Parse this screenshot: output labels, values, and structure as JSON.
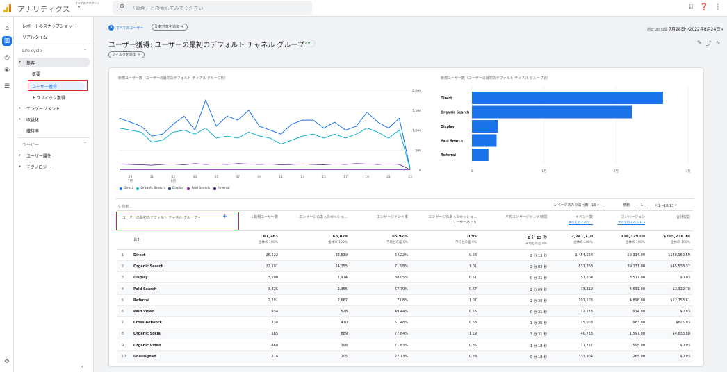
{
  "topbar": {
    "app_title": "アナリティクス",
    "account_label": "すべてのアカウント",
    "search_placeholder": "「管理」と検索してみてください"
  },
  "nav": {
    "snapshot": "レポートのスナップショット",
    "realtime": "リアルタイム",
    "lifecycle": "Life cycle",
    "acquisition": "集客",
    "overview": "概要",
    "user_acquisition": "ユーザー獲得",
    "traffic_acquisition": "トラフィック獲得",
    "engagement": "エンゲージメント",
    "monetization": "収益化",
    "retention": "維持率",
    "user_section": "ユーザー",
    "user_attributes": "ユーザー属性",
    "technology": "テクノロジー"
  },
  "header": {
    "all_users_chip": "すべてのユーザー",
    "compare_chip": "比較対象を追加 ＋",
    "date_prefix": "過去 28 日間",
    "date_range": "7月28日～2022年8月24日",
    "page_title": "ユーザー獲得: ユーザーの最初のデフォルト チャネル グループ",
    "filter_chip": "フィルタを追加 ＋"
  },
  "line_chart": {
    "title": "新規ユーザー数（ユーザーの最初のデフォルト チャネル グループ別）",
    "y_ticks": [
      "2,000",
      "1,500",
      "1,000",
      "500",
      "0"
    ],
    "x_ticks": [
      "29",
      "31",
      "02",
      "03",
      "05",
      "07",
      "09",
      "11",
      "13",
      "15",
      "17",
      "19",
      "21",
      "23"
    ],
    "x_month_labels": [
      "7月",
      "8月"
    ],
    "legend": [
      {
        "name": "Direct",
        "color": "#1a73e8"
      },
      {
        "name": "Organic Search",
        "color": "#12b5cb"
      },
      {
        "name": "Display",
        "color": "#1e3a8a"
      },
      {
        "name": "Paid Search",
        "color": "#7b1fa2"
      },
      {
        "name": "Referral",
        "color": "#4a148c"
      }
    ]
  },
  "bar_chart": {
    "title": "新規ユーザー数（ユーザーの最初のデフォルト チャネル グループ別）",
    "x_ticks": [
      "0",
      "1万",
      "2万",
      "3万"
    ]
  },
  "chart_data": [
    {
      "type": "line",
      "x": [
        "07-28",
        "07-29",
        "07-30",
        "07-31",
        "08-01",
        "08-02",
        "08-03",
        "08-04",
        "08-05",
        "08-06",
        "08-07",
        "08-08",
        "08-09",
        "08-10",
        "08-11",
        "08-12",
        "08-13",
        "08-14",
        "08-15",
        "08-16",
        "08-17",
        "08-18",
        "08-19",
        "08-20",
        "08-21",
        "08-22",
        "08-23",
        "08-24"
      ],
      "ylim": [
        0,
        2000
      ],
      "series": [
        {
          "name": "Direct",
          "values": [
            1300,
            1200,
            1100,
            850,
            900,
            1150,
            1350,
            1000,
            1750,
            1100,
            1350,
            1250,
            1500,
            1100,
            1000,
            900,
            1150,
            1250,
            1250,
            1050,
            1200,
            1000,
            1100,
            1450,
            1200,
            1050,
            1300,
            50
          ]
        },
        {
          "name": "Organic Search",
          "values": [
            1050,
            1000,
            950,
            700,
            750,
            950,
            1000,
            900,
            1050,
            800,
            850,
            800,
            950,
            850,
            800,
            650,
            750,
            850,
            900,
            800,
            900,
            800,
            900,
            1050,
            950,
            800,
            1000,
            30
          ]
        },
        {
          "name": "Display",
          "values": [
            20,
            20,
            20,
            20,
            20,
            20,
            20,
            20,
            20,
            20,
            20,
            20,
            20,
            20,
            20,
            20,
            20,
            20,
            20,
            20,
            20,
            20,
            20,
            20,
            20,
            20,
            20,
            20
          ]
        },
        {
          "name": "Paid Search",
          "values": [
            10,
            10,
            10,
            10,
            10,
            10,
            10,
            10,
            10,
            10,
            10,
            10,
            10,
            10,
            10,
            10,
            10,
            10,
            10,
            10,
            10,
            10,
            10,
            10,
            10,
            10,
            10,
            10
          ]
        },
        {
          "name": "Referral",
          "values": [
            150,
            140,
            130,
            120,
            140,
            150,
            130,
            160,
            140,
            150,
            140,
            160,
            150,
            140,
            150,
            130,
            140,
            150,
            140,
            130,
            150,
            140,
            160,
            150,
            140,
            150,
            140,
            10
          ]
        }
      ]
    },
    {
      "type": "bar",
      "orientation": "horizontal",
      "categories": [
        "Direct",
        "Organic Search",
        "Display",
        "Paid Search",
        "Referral"
      ],
      "values": [
        26522,
        22191,
        3590,
        3426,
        2291
      ],
      "xlim": [
        0,
        30000
      ]
    }
  ],
  "table": {
    "search_placeholder": "検索...",
    "rows_per_page_label": "1 ページあたりの行数",
    "rows_per_page_value": "10",
    "goto_label": "移動:",
    "goto_value": "1",
    "pager_text": "1〜10/13",
    "dimension_header": "ユーザーの最初のデフォルト チャネル グループ",
    "columns": [
      {
        "label": "↓新規ユーザー数",
        "sub": ""
      },
      {
        "label": "エンゲージのあったセッショ...",
        "sub": ""
      },
      {
        "label": "エンゲージメント率",
        "sub": ""
      },
      {
        "label": "エンゲージのあったセッショ...",
        "sub": "ユーザーあたり"
      },
      {
        "label": "平均エンゲージメント時間",
        "sub": ""
      },
      {
        "label": "イベント数",
        "sub": "すべてのイベン..."
      },
      {
        "label": "コンバージョン",
        "sub": "すべてのイベント ▾"
      },
      {
        "label": "合計収益",
        "sub": ""
      }
    ],
    "total_label": "合計",
    "totals": [
      {
        "v": "61,263",
        "p": "全体の 100%"
      },
      {
        "v": "66,829",
        "p": "全体の 100%"
      },
      {
        "v": "65.97%",
        "p": "平均との差 0%"
      },
      {
        "v": "0.95",
        "p": "平均との差 0%"
      },
      {
        "v": "2 分 13 秒",
        "p": "平均との差 0%"
      },
      {
        "v": "2,741,710",
        "p": "全体の 100%"
      },
      {
        "v": "116,329.00",
        "p": "全体の 100%"
      },
      {
        "v": "$215,738.18",
        "p": "全体の 100%"
      }
    ],
    "rows": [
      {
        "idx": "1",
        "name": "Direct",
        "cells": [
          "26,522",
          "32,539",
          "64.22%",
          "0.98",
          "2 分 13 秒",
          "1,454,564",
          "59,314.00",
          "$148,962.59"
        ]
      },
      {
        "idx": "2",
        "name": "Organic Search",
        "cells": [
          "22,191",
          "24,155",
          "71.98%",
          "1.01",
          "2 分 02 秒",
          "831,368",
          "39,131.00",
          "$45,538.37"
        ]
      },
      {
        "idx": "3",
        "name": "Display",
        "cells": [
          "3,590",
          "1,914",
          "38.05%",
          "0.51",
          "0 分 31 秒",
          "57,604",
          "3,517.00",
          "$0.03"
        ]
      },
      {
        "idx": "4",
        "name": "Paid Search",
        "cells": [
          "3,426",
          "2,355",
          "57.79%",
          "0.67",
          "2 分 09 秒",
          "73,312",
          "4,631.00",
          "$2,322.78"
        ]
      },
      {
        "idx": "5",
        "name": "Referral",
        "cells": [
          "2,291",
          "2,667",
          "73.8%",
          "1.07",
          "2 分 30 秒",
          "101,103",
          "4,896.00",
          "$12,753.61"
        ]
      },
      {
        "idx": "6",
        "name": "Paid Video",
        "cells": [
          "934",
          "528",
          "49.44%",
          "0.56",
          "0 分 31 秒",
          "12,133",
          "914.00",
          "$0.03"
        ]
      },
      {
        "idx": "7",
        "name": "Cross-network",
        "cells": [
          "738",
          "470",
          "51.48%",
          "0.63",
          "1 分 25 秒",
          "15,003",
          "963.00",
          "$625.03"
        ]
      },
      {
        "idx": "8",
        "name": "Organic Social",
        "cells": [
          "585",
          "889",
          "77.64%",
          "1.29",
          "3 分 31 秒",
          "40,733",
          "1,597.00",
          "$4,633.88"
        ]
      },
      {
        "idx": "9",
        "name": "Organic Video",
        "cells": [
          "460",
          "398",
          "71.83%",
          "0.85",
          "1 分 18 秒",
          "11,727",
          "595.00",
          "$0.03"
        ]
      },
      {
        "idx": "10",
        "name": "Unassigned",
        "cells": [
          "274",
          "105",
          "27.13%",
          "0.38",
          "0 分 18 秒",
          "133,904",
          "265.00",
          "$0.03"
        ]
      }
    ]
  }
}
